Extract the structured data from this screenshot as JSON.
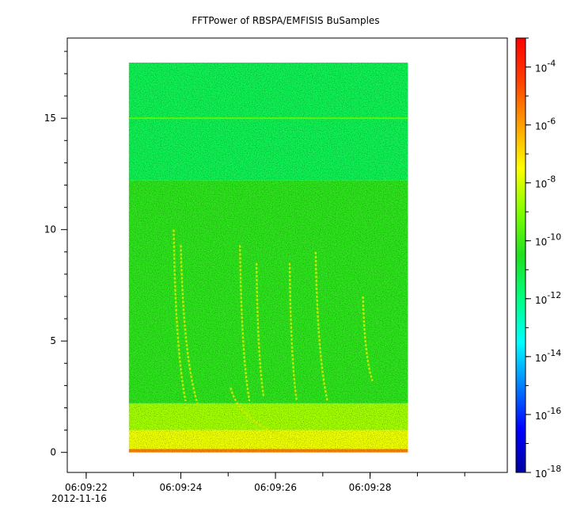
{
  "chart_data": {
    "type": "heatmap",
    "title": "FFTPower of RBSPA/EMFISIS  BuSamples",
    "xlabel": "",
    "ylabel": "",
    "x_tick_labels": [
      "06:09:22",
      "06:09:24",
      "06:09:26",
      "06:09:28"
    ],
    "x_date_label": "2012-11-16",
    "x_ticks_seconds": [
      22,
      24,
      26,
      28
    ],
    "x_data_range_seconds": [
      22.9,
      28.8
    ],
    "xlim_seconds": [
      21.6,
      30.9
    ],
    "y_ticks": [
      0,
      5,
      10,
      15
    ],
    "y_data_range": [
      0,
      17.5
    ],
    "ylim": [
      -0.9,
      18.6
    ],
    "colorbar": {
      "scale": "log",
      "range": [
        1e-18,
        0.001
      ],
      "tick_base": "10",
      "tick_exponents": [
        "-4",
        "-6",
        "-8",
        "-10",
        "-12",
        "-14",
        "-16",
        "-18"
      ],
      "tick_values": [
        0.0001,
        1e-06,
        1e-08,
        1e-10,
        1e-12,
        1e-14,
        1e-16,
        1e-18
      ],
      "colors": [
        "#0000a0",
        "#0000ff",
        "#0080ff",
        "#00ffff",
        "#00ff80",
        "#20e020",
        "#80ff00",
        "#ffff00",
        "#ffa000",
        "#ff4000",
        "#ff0000"
      ]
    },
    "bands": [
      {
        "y_from": 12.2,
        "y_to": 17.5,
        "level_log10": -11.3
      },
      {
        "y_from": 2.2,
        "y_to": 12.2,
        "level_log10": -10.3
      },
      {
        "y_from": 1.0,
        "y_to": 2.2,
        "level_log10": -8.6
      },
      {
        "y_from": 0.15,
        "y_to": 1.0,
        "level_log10": -7.7
      },
      {
        "y_from": 0,
        "y_to": 0.15,
        "level_log10": -5.5
      }
    ],
    "line_features": [
      {
        "y": 15.0,
        "level_log10": -9.6
      }
    ],
    "chorus_traces": [
      {
        "t_start": 23.85,
        "f_start": 10.0,
        "t_end": 24.1,
        "f_end": 2.3
      },
      {
        "t_start": 24.0,
        "f_start": 9.3,
        "t_end": 24.35,
        "f_end": 2.2
      },
      {
        "t_start": 25.25,
        "f_start": 9.3,
        "t_end": 25.45,
        "f_end": 2.3
      },
      {
        "t_start": 25.6,
        "f_start": 8.5,
        "t_end": 25.75,
        "f_end": 2.5
      },
      {
        "t_start": 26.3,
        "f_start": 8.5,
        "t_end": 26.45,
        "f_end": 2.3
      },
      {
        "t_start": 26.85,
        "f_start": 9.0,
        "t_end": 27.1,
        "f_end": 2.3
      },
      {
        "t_start": 27.85,
        "f_start": 7.0,
        "t_end": 28.05,
        "f_end": 3.2
      },
      {
        "t_start": 25.05,
        "f_start": 2.9,
        "t_end": 26.5,
        "f_end": 0.5
      }
    ]
  }
}
